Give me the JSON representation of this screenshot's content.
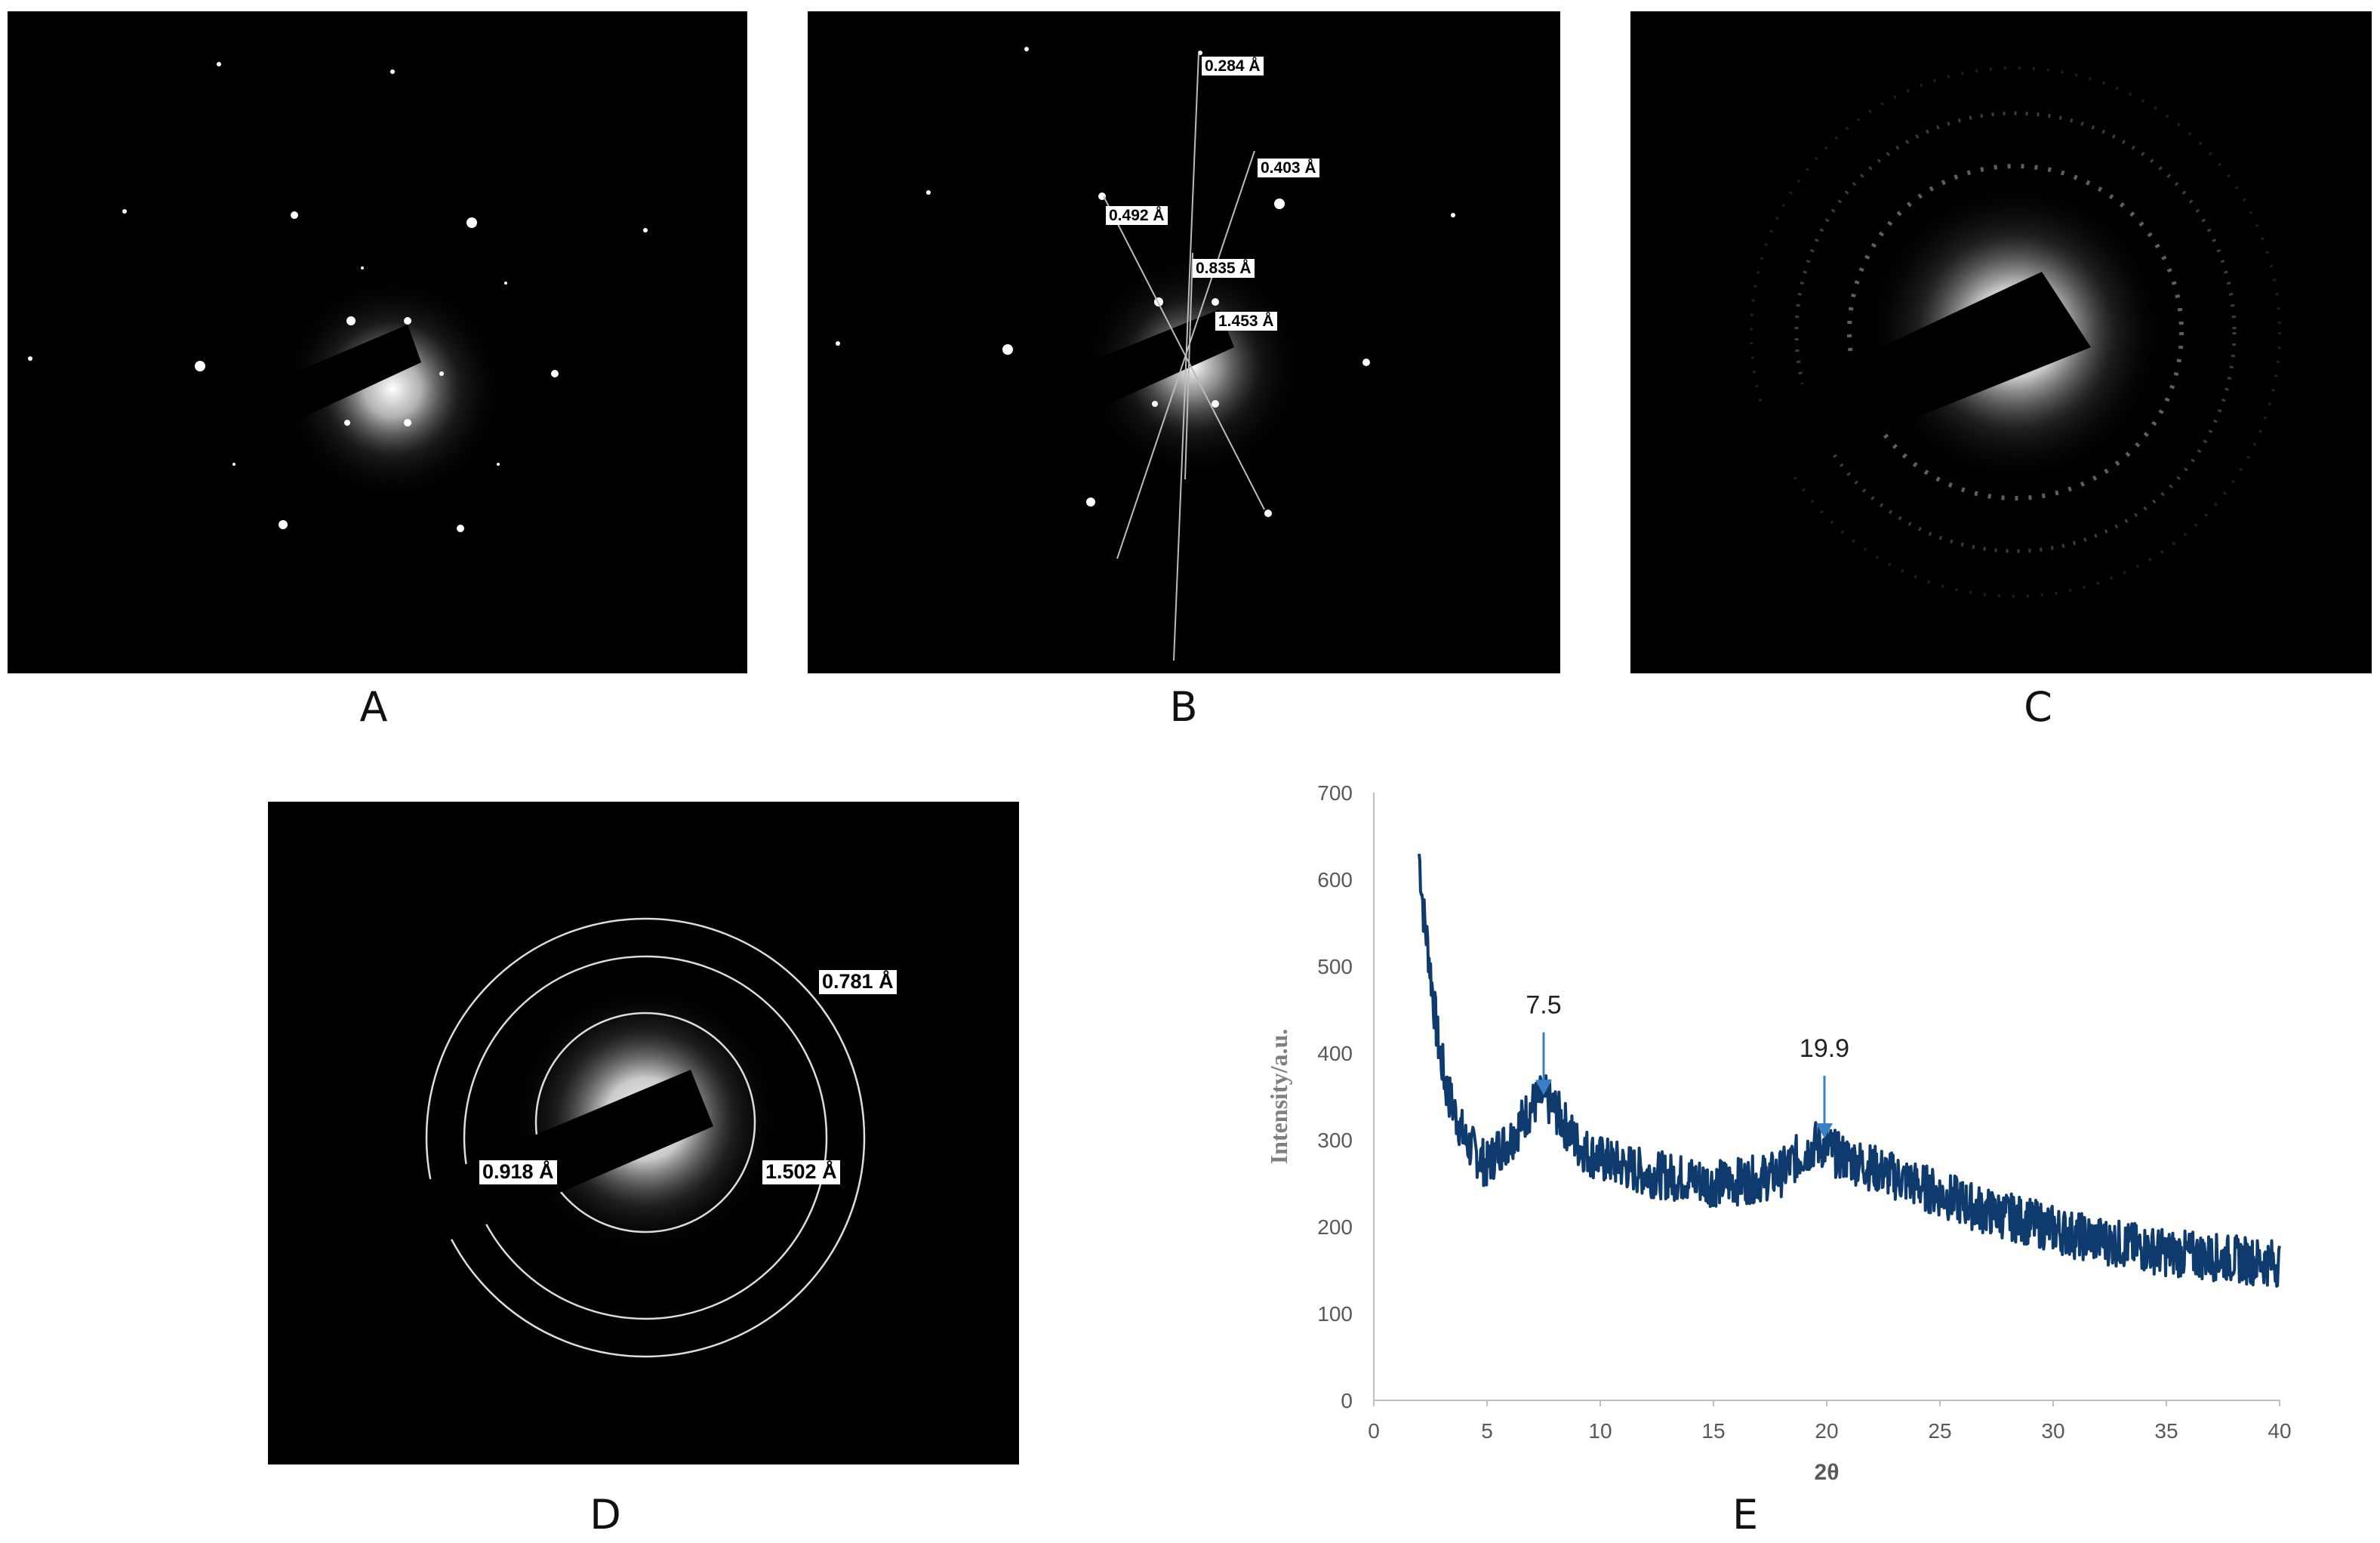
{
  "panels": {
    "a": {
      "label": "A"
    },
    "b": {
      "label": "B",
      "d_spacings": [
        "0.284 Å",
        "0.403 Å",
        "0.492 Å",
        "0.835 Å",
        "1.453 Å"
      ]
    },
    "c": {
      "label": "C"
    },
    "d": {
      "label": "D",
      "ring_spacings": [
        "0.781 Å",
        "0.918 Å",
        "1.502 Å"
      ]
    },
    "e": {
      "label": "E"
    }
  },
  "chart_data": {
    "type": "line",
    "xlabel": "2θ",
    "ylabel": "Intensity/a.u.",
    "xlim": [
      0,
      40
    ],
    "ylim": [
      0,
      700
    ],
    "xticks": [
      0,
      5,
      10,
      15,
      20,
      25,
      30,
      35,
      40
    ],
    "yticks": [
      0,
      100,
      200,
      300,
      400,
      500,
      600,
      700
    ],
    "grid": false,
    "line_color": "#0f3a6e",
    "arrow_color": "#3b7fc4",
    "annotations": [
      {
        "x": 7.5,
        "y": 350,
        "text": "7.5"
      },
      {
        "x": 19.9,
        "y": 300,
        "text": "19.9"
      }
    ],
    "series": [
      {
        "x": [
          2.0,
          2.2,
          2.4,
          2.6,
          2.8,
          3.0,
          3.2,
          3.4,
          3.6,
          3.8,
          4.0,
          4.5,
          5.0,
          5.5,
          6.0,
          6.5,
          7.0,
          7.5,
          8.0,
          8.5,
          9.0,
          9.5,
          10.0,
          11.0,
          12.0,
          13.0,
          14.0,
          15.0,
          16.0,
          17.0,
          18.0,
          18.5,
          19.0,
          19.5,
          20.0,
          20.5,
          21.0,
          22.0,
          23.0,
          24.0,
          25.0,
          26.0,
          27.0,
          28.0,
          29.0,
          30.0,
          31.0,
          32.0,
          33.0,
          34.0,
          35.0,
          36.0,
          37.0,
          38.0,
          39.0,
          40.0
        ],
        "values": [
          630,
          560,
          520,
          470,
          420,
          390,
          360,
          345,
          330,
          318,
          300,
          285,
          270,
          290,
          300,
          320,
          340,
          350,
          335,
          315,
          295,
          285,
          278,
          270,
          262,
          258,
          255,
          250,
          252,
          255,
          262,
          275,
          285,
          295,
          292,
          282,
          278,
          268,
          258,
          248,
          238,
          228,
          218,
          212,
          205,
          198,
          190,
          185,
          180,
          175,
          170,
          168,
          165,
          163,
          160,
          158
        ]
      }
    ]
  }
}
